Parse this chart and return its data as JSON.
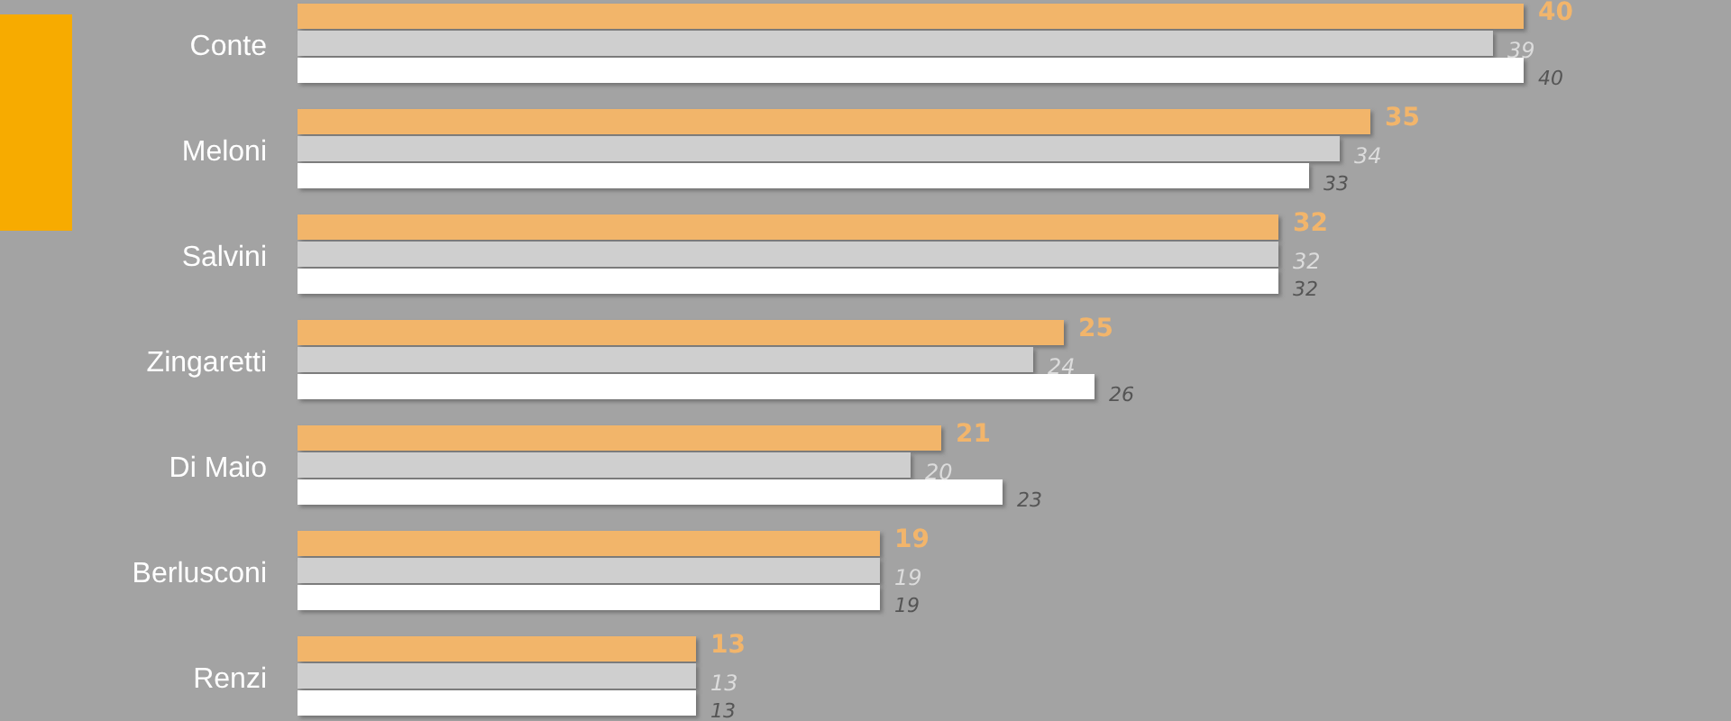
{
  "chart_data": {
    "type": "bar",
    "orientation": "horizontal",
    "categories": [
      "Conte",
      "Meloni",
      "Salvini",
      "Zingaretti",
      "Di Maio",
      "Berlusconi",
      "Renzi"
    ],
    "series": [
      {
        "color": "#f2b56b",
        "values": [
          40,
          35,
          32,
          25,
          21,
          19,
          13
        ]
      },
      {
        "color": "#cfcfcf",
        "values": [
          39,
          34,
          32,
          24,
          20,
          19,
          13
        ]
      },
      {
        "color": "#ffffff",
        "values": [
          40,
          33,
          32,
          26,
          23,
          19,
          13
        ]
      }
    ],
    "xlim": [
      0,
      40
    ],
    "data_labels": true,
    "tick_labels": "y"
  }
}
